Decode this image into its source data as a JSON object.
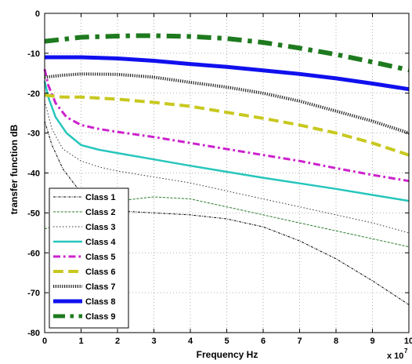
{
  "chart_data": {
    "type": "line",
    "title": "",
    "xlabel": "Frequency Hz",
    "ylabel": "transfer function dB",
    "x_multiplier": "x 10",
    "x_multiplier_exp": "7",
    "xlim": [
      0,
      10
    ],
    "ylim": [
      -80,
      0
    ],
    "xticks": [
      "0",
      "1",
      "2",
      "3",
      "4",
      "5",
      "6",
      "7",
      "8",
      "9",
      "10"
    ],
    "yticks": [
      "0",
      "-10",
      "-20",
      "-30",
      "-40",
      "-50",
      "-60",
      "-70",
      "-80"
    ],
    "grid": true,
    "legend_position": "bottom-left",
    "series": [
      {
        "name": "Class 1",
        "color": "#000000",
        "style": "dashdot",
        "width": 1,
        "x": [
          0,
          0.2,
          0.5,
          1,
          1.5,
          2,
          3,
          4,
          5,
          6,
          7,
          8,
          9,
          10
        ],
        "y": [
          -27,
          -33,
          -39,
          -45,
          -48,
          -49.5,
          -50,
          -50.5,
          -51.5,
          -53.5,
          -57,
          -61.5,
          -67,
          -73
        ]
      },
      {
        "name": "Class 2",
        "color": "#2e7d32",
        "style": "dashed",
        "width": 1,
        "x": [
          0,
          0.2,
          0.5,
          1,
          1.5,
          2,
          3,
          4,
          5,
          6,
          7,
          8,
          9,
          10
        ],
        "y": [
          -54,
          -53.5,
          -52,
          -49.5,
          -48,
          -47,
          -46,
          -46.5,
          -48.5,
          -50.5,
          -52.5,
          -54.5,
          -56.5,
          -58.5
        ]
      },
      {
        "name": "Class 3",
        "color": "#333333",
        "style": "dotted",
        "width": 1,
        "x": [
          0,
          0.2,
          0.5,
          1,
          1.5,
          2,
          3,
          4,
          5,
          6,
          7,
          8,
          9,
          10
        ],
        "y": [
          -22,
          -29,
          -34,
          -37,
          -38.5,
          -39.5,
          -41,
          -42.5,
          -44.5,
          -46.5,
          -48.5,
          -50.5,
          -52.5,
          -55
        ]
      },
      {
        "name": "Class 4",
        "color": "#26c6bc",
        "style": "solid",
        "width": 2.5,
        "x": [
          0,
          0.1,
          0.3,
          0.6,
          1,
          1.5,
          2,
          3,
          4,
          5,
          6,
          7,
          8,
          9,
          10
        ],
        "y": [
          -17,
          -21,
          -26,
          -30,
          -33,
          -34.2,
          -35,
          -36.6,
          -38.2,
          -39.7,
          -41.2,
          -42.6,
          -44,
          -45.5,
          -47
        ]
      },
      {
        "name": "Class 5",
        "color": "#cc22cc",
        "style": "dashdot",
        "width": 3,
        "x": [
          0,
          0.1,
          0.3,
          0.6,
          1,
          1.5,
          2,
          3,
          4,
          5,
          6,
          7,
          8,
          9,
          10
        ],
        "y": [
          -14,
          -18,
          -22.5,
          -26,
          -28,
          -29,
          -29.7,
          -31,
          -32.5,
          -34,
          -35.5,
          -37,
          -38.8,
          -40.5,
          -42
        ]
      },
      {
        "name": "Class 6",
        "color": "#c8c820",
        "style": "dashed",
        "width": 4,
        "x": [
          0,
          0.5,
          1,
          2,
          3,
          4,
          5,
          6,
          7,
          8,
          9,
          10
        ],
        "y": [
          -20.5,
          -21,
          -21,
          -21.5,
          -22.3,
          -23.3,
          -24.8,
          -26.3,
          -28,
          -30,
          -32.5,
          -35.5
        ]
      },
      {
        "name": "Class 7",
        "color": "#222222",
        "style": "dotted",
        "width": 4,
        "x": [
          0,
          0.5,
          1,
          2,
          3,
          4,
          5,
          6,
          7,
          8,
          9,
          10
        ],
        "y": [
          -16,
          -15.5,
          -15.2,
          -15.3,
          -16,
          -17.3,
          -18.5,
          -20,
          -22,
          -24.5,
          -27,
          -30
        ]
      },
      {
        "name": "Class 8",
        "color": "#1010ee",
        "style": "solid",
        "width": 5,
        "x": [
          0,
          0.5,
          1,
          2,
          3,
          4,
          5,
          6,
          7,
          8,
          9,
          10
        ],
        "y": [
          -11,
          -11,
          -11,
          -11.3,
          -11.9,
          -12.7,
          -13.4,
          -14.3,
          -15.2,
          -16.3,
          -17.6,
          -19
        ]
      },
      {
        "name": "Class 9",
        "color": "#1e7a1e",
        "style": "dashdot",
        "width": 6,
        "x": [
          0,
          0.5,
          1,
          2,
          2.5,
          3,
          4,
          5,
          6,
          7,
          8,
          9,
          10
        ],
        "y": [
          -7,
          -6.5,
          -6,
          -5.7,
          -5.6,
          -5.6,
          -5.8,
          -6.3,
          -7.3,
          -8.7,
          -10.3,
          -12.2,
          -14.2
        ]
      }
    ]
  }
}
